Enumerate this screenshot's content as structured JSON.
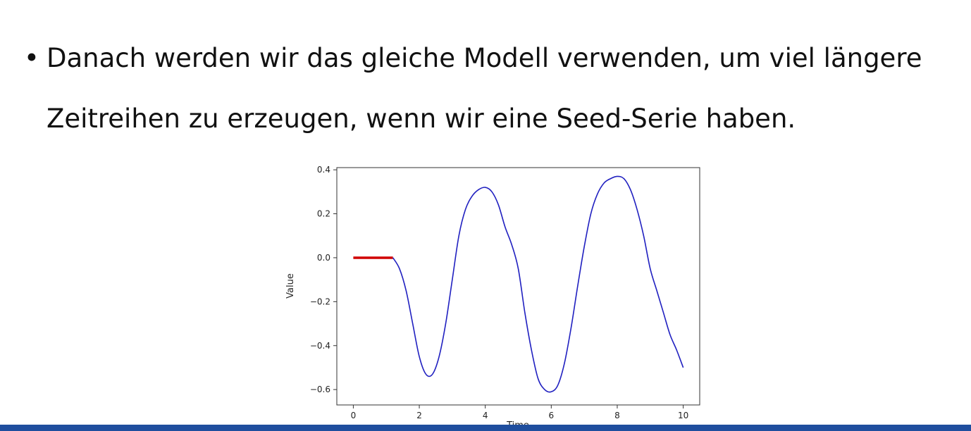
{
  "slide": {
    "bullet_symbol": "•",
    "bullet_lines": [
      "Danach werden wir das gleiche Modell verwenden, um viel längere",
      "Zeitreihen zu erzeugen, wenn wir eine Seed-Serie haben."
    ],
    "bar_color": "#1f4e9e"
  },
  "chart_data": {
    "type": "line",
    "title": "",
    "xlabel": "Time",
    "ylabel": "Value",
    "xlim": [
      -0.5,
      10.5
    ],
    "ylim": [
      -0.67,
      0.41
    ],
    "xticks": [
      0,
      2,
      4,
      6,
      8,
      10
    ],
    "xtick_labels": [
      "0",
      "2",
      "4",
      "6",
      "8",
      "10"
    ],
    "yticks": [
      0.4,
      0.2,
      0.0,
      -0.2,
      -0.4,
      -0.6
    ],
    "ytick_labels": [
      "0.4",
      "0.2",
      "0.0",
      "−0.2",
      "−0.4",
      "−0.6"
    ],
    "grid": false,
    "series": [
      {
        "color": "#d00000",
        "x": [
          0,
          0.2,
          0.4,
          0.6,
          0.8,
          1.0,
          1.2
        ],
        "y": [
          0,
          0,
          0,
          0,
          0,
          0,
          0
        ]
      },
      {
        "color": "#2020c0",
        "x": [
          1.2,
          1.4,
          1.6,
          1.8,
          2.0,
          2.2,
          2.4,
          2.6,
          2.8,
          3.0,
          3.2,
          3.4,
          3.6,
          3.8,
          4.0,
          4.2,
          4.4,
          4.6,
          4.8,
          5.0,
          5.2,
          5.4,
          5.6,
          5.8,
          6.0,
          6.2,
          6.4,
          6.6,
          6.8,
          7.0,
          7.2,
          7.4,
          7.6,
          7.8,
          8.0,
          8.2,
          8.4,
          8.6,
          8.8,
          9.0,
          9.2,
          9.4,
          9.6,
          9.8,
          10.0
        ],
        "y": [
          0.0,
          -0.05,
          -0.15,
          -0.3,
          -0.45,
          -0.53,
          -0.53,
          -0.45,
          -0.3,
          -0.1,
          0.1,
          0.22,
          0.28,
          0.31,
          0.32,
          0.3,
          0.24,
          0.14,
          0.06,
          -0.05,
          -0.25,
          -0.42,
          -0.55,
          -0.6,
          -0.61,
          -0.58,
          -0.48,
          -0.32,
          -0.13,
          0.05,
          0.2,
          0.29,
          0.34,
          0.36,
          0.37,
          0.36,
          0.31,
          0.22,
          0.1,
          -0.05,
          -0.15,
          -0.25,
          -0.35,
          -0.42,
          -0.5
        ]
      }
    ]
  }
}
